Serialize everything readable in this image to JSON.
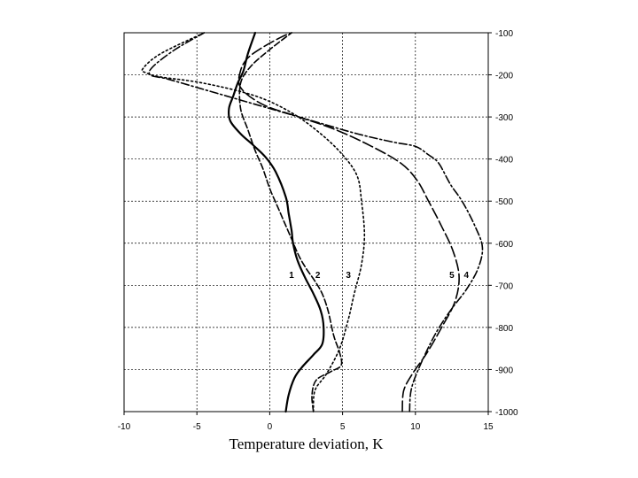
{
  "chart_data": {
    "type": "line",
    "title": "",
    "xlabel": "Temperature deviation, K",
    "ylabel": "",
    "xlim": [
      -10,
      15
    ],
    "ylim": [
      -1000,
      -100
    ],
    "x_ticks": [
      "-10",
      "-5",
      "0",
      "5",
      "10",
      "15"
    ],
    "y_ticks": [
      "-100",
      "-200",
      "-300",
      "-400",
      "-500",
      "-600",
      "-700",
      "-800",
      "-900",
      "-1000"
    ],
    "y_axis_side": "right",
    "grid": true,
    "curve_labels": [
      {
        "text": "1",
        "x": 1.5,
        "y": -683
      },
      {
        "text": "2",
        "x": 3.3,
        "y": -683
      },
      {
        "text": "3",
        "x": 5.4,
        "y": -683
      },
      {
        "text": "5",
        "x": 12.5,
        "y": -683
      },
      {
        "text": "4",
        "x": 13.5,
        "y": -683
      }
    ],
    "series": [
      {
        "id": "1",
        "style": "solid",
        "x": [
          1.1,
          1.3,
          1.7,
          2.2,
          3.0,
          3.6,
          3.7,
          3.5,
          3.0,
          2.4,
          1.9,
          1.6,
          1.5,
          1.3,
          1.1,
          0.4,
          -0.3,
          -1.2,
          -2.0,
          -2.7,
          -2.8,
          -2.5,
          -2.2,
          -1.8,
          -1.5,
          -1.0
        ],
        "y": [
          -1000,
          -960,
          -920,
          -895,
          -865,
          -840,
          -800,
          -760,
          -720,
          -680,
          -640,
          -600,
          -570,
          -530,
          -490,
          -430,
          -395,
          -365,
          -340,
          -310,
          -280,
          -250,
          -220,
          -190,
          -150,
          -100
        ]
      },
      {
        "id": "2",
        "style": "dashed",
        "x": [
          3.0,
          2.9,
          3.2,
          4.2,
          4.9,
          4.8,
          4.4,
          4.0,
          3.6,
          3.1,
          2.5,
          2.0,
          1.5,
          1.0,
          0.5,
          0.0,
          -0.5,
          -1.0,
          -1.5,
          -2.0,
          -2.0,
          -1.3,
          0.0,
          1.5
        ],
        "y": [
          -1000,
          -960,
          -925,
          -905,
          -890,
          -860,
          -820,
          -760,
          -720,
          -690,
          -660,
          -630,
          -590,
          -550,
          -510,
          -470,
          -420,
          -380,
          -330,
          -280,
          -220,
          -180,
          -140,
          -100
        ]
      },
      {
        "id": "3",
        "style": "dotted",
        "x": [
          3.0,
          3.1,
          3.9,
          4.8,
          5.4,
          5.8,
          6.3,
          6.5,
          6.3,
          6.0,
          5.0,
          3.5,
          1.5,
          -1.0,
          -4.5,
          -7.5,
          -8.5,
          -8.7,
          -7.5,
          -4.5
        ],
        "y": [
          -1000,
          -950,
          -910,
          -850,
          -780,
          -720,
          -650,
          -580,
          -500,
          -440,
          -390,
          -340,
          -290,
          -250,
          -220,
          -205,
          -195,
          -185,
          -150,
          -100
        ]
      },
      {
        "id": "4",
        "style": "dash-dot",
        "x": [
          9.6,
          9.7,
          10.2,
          11.3,
          12.4,
          13.5,
          14.3,
          14.6,
          14.1,
          13.2,
          12.4,
          11.6,
          10.9,
          10.0,
          8.5,
          6.0,
          3.0,
          0.0,
          -2.5,
          -5.0,
          -7.0,
          -8.2,
          -8.0,
          -6.5,
          -4.5
        ],
        "y": [
          -1000,
          -950,
          -900,
          -820,
          -760,
          -710,
          -660,
          -610,
          -560,
          -500,
          -460,
          -410,
          -390,
          -370,
          -360,
          -340,
          -310,
          -280,
          -255,
          -230,
          -210,
          -200,
          -180,
          -140,
          -100
        ]
      },
      {
        "id": "5",
        "style": "long-dash",
        "x": [
          9.1,
          9.2,
          9.8,
          10.8,
          11.8,
          12.7,
          13.0,
          12.6,
          11.8,
          10.9,
          10.1,
          9.0,
          7.0,
          4.5,
          2.0,
          -0.5,
          -2.0,
          -2.0,
          -1.5,
          -0.5,
          0.8,
          1.5
        ],
        "y": [
          -1000,
          -950,
          -910,
          -860,
          -800,
          -740,
          -680,
          -620,
          -560,
          -500,
          -450,
          -410,
          -370,
          -330,
          -300,
          -270,
          -230,
          -190,
          -160,
          -135,
          -110,
          -100
        ]
      }
    ]
  }
}
